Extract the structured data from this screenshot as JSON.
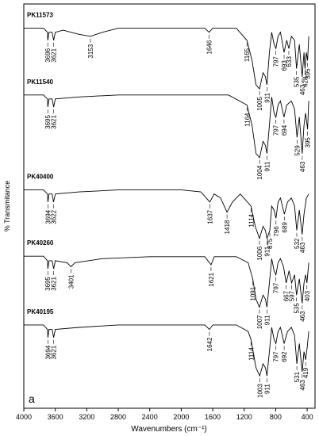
{
  "chart_data": {
    "type": "line",
    "xlabel": "Wavenumbers (cm⁻¹)",
    "ylabel": "% Transmitance",
    "annotation": "a",
    "xlim": [
      4000,
      300
    ],
    "xticks": [
      4000,
      3600,
      3200,
      2800,
      2400,
      2000,
      1600,
      1200,
      800,
      400
    ],
    "ylim": [
      0,
      100
    ],
    "series": [
      {
        "name": "PK11573",
        "color": "#000000",
        "x": [
          4000,
          3750,
          3700,
          3696,
          3680,
          3640,
          3621,
          3600,
          3500,
          3300,
          3153,
          3000,
          2800,
          2400,
          2000,
          1700,
          1646,
          1600,
          1300,
          1165,
          1100,
          1050,
          1005,
          960,
          930,
          911,
          880,
          850,
          820,
          797,
          770,
          740,
          720,
          693,
          660,
          633,
          600,
          560,
          535,
          500,
          463,
          440,
          428,
          410,
          395,
          380
        ],
        "values": [
          94,
          94,
          93,
          91,
          93,
          93,
          91,
          93,
          93.5,
          92.5,
          92,
          93,
          94,
          94,
          94,
          94,
          93,
          94,
          94,
          91,
          86,
          80,
          79,
          83,
          82,
          80,
          88,
          93,
          90,
          89,
          92,
          93,
          91,
          88,
          91,
          89,
          92,
          91,
          84,
          90,
          82,
          88,
          84,
          88,
          86,
          92
        ],
        "peaks": [
          3696,
          3621,
          3153,
          1646,
          1165,
          1005,
          911,
          797,
          693,
          633,
          535,
          463,
          428,
          395
        ]
      },
      {
        "name": "PK11540",
        "color": "#000000",
        "x": [
          4000,
          3750,
          3700,
          3695,
          3680,
          3640,
          3621,
          3600,
          3300,
          2800,
          2000,
          1400,
          1164,
          1100,
          1050,
          1004,
          960,
          930,
          911,
          880,
          850,
          820,
          797,
          770,
          740,
          694,
          660,
          600,
          560,
          529,
          500,
          463,
          440,
          420,
          395,
          380
        ],
        "values": [
          77.5,
          77.5,
          76.5,
          74.5,
          76.5,
          76.5,
          74.5,
          76.5,
          77,
          77.5,
          77.5,
          77.5,
          75,
          70,
          63,
          62,
          66,
          65,
          63,
          70,
          77,
          73,
          72,
          75,
          76,
          72,
          75,
          76,
          74,
          67,
          72,
          63,
          70,
          73,
          69,
          76
        ],
        "peaks": [
          3695,
          3621,
          1164,
          1004,
          911,
          797,
          694,
          529,
          463,
          395
        ]
      },
      {
        "name": "PK40400",
        "color": "#000000",
        "x": [
          4000,
          3750,
          3700,
          3694,
          3680,
          3640,
          3622,
          3600,
          3300,
          2800,
          2000,
          1750,
          1637,
          1580,
          1500,
          1418,
          1350,
          1250,
          1114,
          1060,
          1006,
          960,
          930,
          911,
          875,
          850,
          820,
          796,
          770,
          740,
          689,
          650,
          600,
          560,
          532,
          500,
          463,
          440,
          410,
          380
        ],
        "values": [
          54,
          54,
          53,
          51,
          53,
          53,
          51,
          53,
          53.5,
          54,
          54,
          53.5,
          51,
          53,
          52,
          48.5,
          51,
          53,
          50,
          45,
          42,
          45,
          44,
          42,
          44,
          50,
          49,
          47,
          51,
          52,
          48,
          51,
          52,
          50,
          44,
          49,
          43,
          48,
          52,
          53
        ],
        "peaks": [
          3694,
          3622,
          1637,
          1418,
          1114,
          1006,
          911,
          875,
          796,
          689,
          532,
          463
        ]
      },
      {
        "name": "PK40260",
        "color": "#000000",
        "x": [
          4000,
          3750,
          3700,
          3695,
          3680,
          3640,
          3621,
          3600,
          3450,
          3401,
          3350,
          3000,
          2400,
          2000,
          1700,
          1621,
          1580,
          1300,
          1150,
          1091,
          1050,
          1007,
          960,
          930,
          911,
          880,
          850,
          820,
          797,
          770,
          740,
          700,
          667,
          630,
          597,
          560,
          535,
          500,
          463,
          440,
          420,
          403,
          380
        ],
        "values": [
          37.6,
          37.6,
          36.5,
          34.5,
          36.5,
          36.5,
          34.5,
          36.5,
          36,
          35,
          36,
          37,
          37.5,
          37.5,
          37.5,
          35.5,
          37.5,
          37.5,
          36,
          32,
          27,
          25,
          28,
          27,
          25,
          31,
          37,
          34,
          33,
          36,
          37,
          35,
          31,
          34,
          31,
          33,
          28,
          32,
          26,
          31,
          33,
          31,
          36
        ],
        "peaks": [
          3695,
          3621,
          3401,
          1621,
          1091,
          1007,
          911,
          797,
          667,
          597,
          535,
          463,
          403
        ]
      },
      {
        "name": "PK40195",
        "color": "#000000",
        "x": [
          4000,
          3750,
          3700,
          3694,
          3680,
          3640,
          3621,
          3600,
          3300,
          2800,
          2000,
          1700,
          1642,
          1600,
          1300,
          1150,
          1114,
          1050,
          1003,
          960,
          930,
          911,
          880,
          850,
          820,
          797,
          770,
          740,
          692,
          650,
          600,
          560,
          531,
          500,
          463,
          440,
          419,
          400,
          380
        ],
        "values": [
          20.6,
          20.6,
          19.5,
          17.5,
          19.5,
          19.5,
          17.5,
          19.5,
          20,
          20.6,
          20.6,
          20.6,
          19.5,
          20.6,
          20.6,
          19,
          17,
          10,
          8,
          11,
          10,
          8,
          14,
          20,
          17,
          16,
          19,
          20,
          16,
          19,
          20,
          18,
          11,
          16,
          9,
          14,
          12,
          15,
          19
        ],
        "peaks": [
          3694,
          3621,
          1642,
          1114,
          1003,
          911,
          797,
          692,
          531,
          463,
          419
        ]
      }
    ]
  }
}
